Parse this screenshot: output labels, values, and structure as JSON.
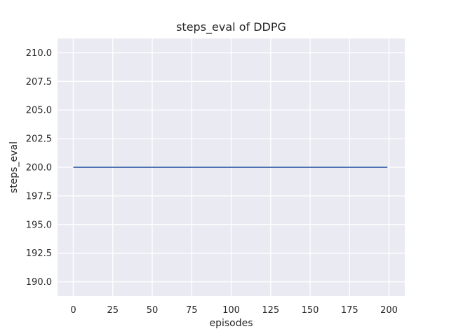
{
  "chart_data": {
    "type": "line",
    "title": "steps_eval of DDPG",
    "xlabel": "episodes",
    "ylabel": "steps_eval",
    "xlim": [
      -10,
      210
    ],
    "ylim": [
      188.75,
      211.25
    ],
    "xticks": [
      0,
      25,
      50,
      75,
      100,
      125,
      150,
      175,
      200
    ],
    "xtick_labels": [
      "0",
      "25",
      "50",
      "75",
      "100",
      "125",
      "150",
      "175",
      "200"
    ],
    "yticks": [
      190.0,
      192.5,
      195.0,
      197.5,
      200.0,
      202.5,
      205.0,
      207.5,
      210.0
    ],
    "ytick_labels": [
      "190.0",
      "192.5",
      "195.0",
      "197.5",
      "200.0",
      "202.5",
      "205.0",
      "207.5",
      "210.0"
    ],
    "grid": true,
    "legend": null,
    "style": {
      "figure_bg": "#FFFFFF",
      "axes_bg": "#EAEAF2",
      "grid_color": "#FFFFFF",
      "line_color": "#4C72B0",
      "text_color": "#262626"
    },
    "series": [
      {
        "name": "DDPG steps_eval",
        "points": [
          [
            0,
            200
          ],
          [
            199,
            200
          ]
        ]
      }
    ]
  }
}
